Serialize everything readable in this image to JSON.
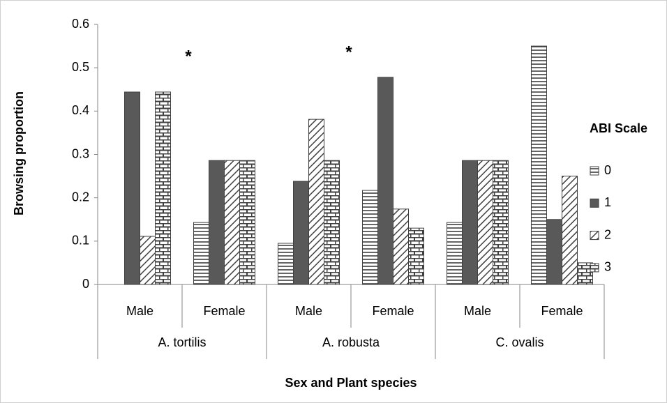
{
  "chart_data": {
    "type": "bar",
    "x_label": "Sex and Plant species",
    "y_label": "Browsing proportion",
    "categories": [
      "Male",
      "Female",
      "Male",
      "Female",
      "Male",
      "Female"
    ],
    "groups": [
      "A. tortilis",
      "A. robusta",
      "C. ovalis"
    ],
    "legend_title": "ABI Scale",
    "series": [
      {
        "name": "0",
        "pattern": "hlines",
        "color": "#404040",
        "values": [
          0,
          0.143,
          0.095,
          0.217,
          0.143,
          0.55
        ]
      },
      {
        "name": "1",
        "pattern": "solid",
        "color": "#595959",
        "values": [
          0.444,
          0.286,
          0.238,
          0.478,
          0.286,
          0.15
        ]
      },
      {
        "name": "2",
        "pattern": "diagonal",
        "color": "#404040",
        "values": [
          0.111,
          0.286,
          0.381,
          0.174,
          0.286,
          0.25
        ]
      },
      {
        "name": "3",
        "pattern": "brick",
        "color": "#404040",
        "values": [
          0.444,
          0.286,
          0.286,
          0.13,
          0.286,
          0.05
        ]
      }
    ],
    "annotations": [
      "*",
      "*"
    ],
    "ylim": [
      0,
      0.6
    ],
    "yticks": [
      0,
      0.1,
      0.2,
      0.3,
      0.4,
      0.5,
      0.6
    ],
    "grid": false
  }
}
